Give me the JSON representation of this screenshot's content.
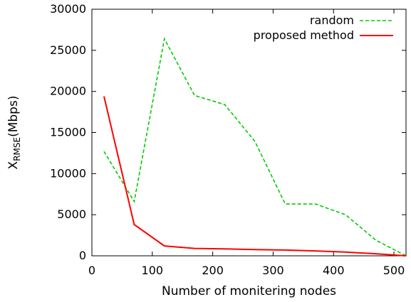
{
  "chart_data": {
    "type": "line",
    "title": "",
    "xlabel": "Number of monitering nodes",
    "ylabel": {
      "main": "X",
      "subscript": "RMSE",
      "unit": "(Mbps)"
    },
    "xlim": [
      0,
      520
    ],
    "ylim": [
      0,
      30000
    ],
    "xticks": [
      0,
      100,
      200,
      300,
      400,
      500
    ],
    "yticks": [
      0,
      5000,
      10000,
      15000,
      20000,
      25000,
      30000
    ],
    "grid": false,
    "legend_position": "top-right",
    "series": [
      {
        "name": "random",
        "color": "#00cc00",
        "line_style": "dashed",
        "x": [
          20,
          70,
          120,
          170,
          220,
          270,
          320,
          370,
          420,
          470,
          520
        ],
        "y": [
          12700,
          6600,
          26400,
          19500,
          18400,
          13900,
          6300,
          6300,
          5000,
          1900,
          0
        ]
      },
      {
        "name": "proposed method",
        "color": "#ff0000",
        "line_style": "solid",
        "x": [
          20,
          70,
          120,
          170,
          220,
          270,
          320,
          370,
          420,
          470,
          520
        ],
        "y": [
          19400,
          3800,
          1200,
          900,
          850,
          750,
          700,
          600,
          450,
          250,
          0
        ]
      }
    ]
  }
}
